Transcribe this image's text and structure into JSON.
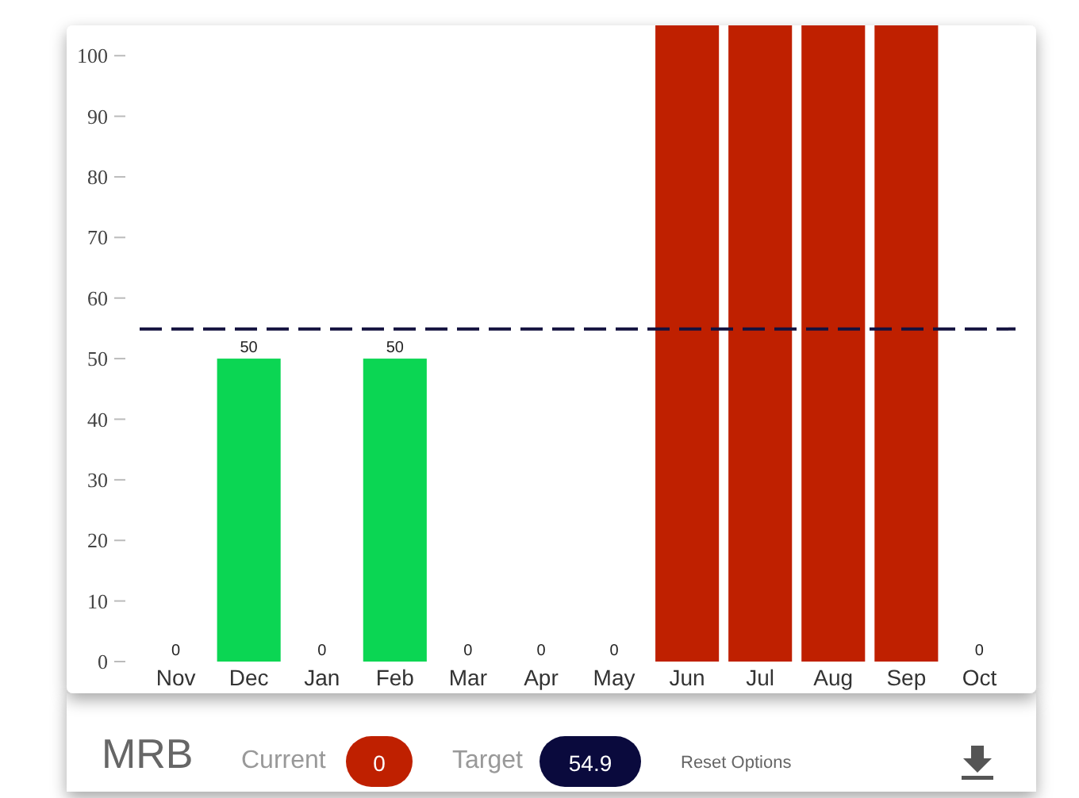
{
  "chart_data": {
    "type": "bar",
    "categories": [
      "Nov",
      "Dec",
      "Jan",
      "Feb",
      "Mar",
      "Apr",
      "May",
      "Jun",
      "Jul",
      "Aug",
      "Sep",
      "Oct"
    ],
    "values": [
      0,
      50,
      0,
      50,
      0,
      0,
      0,
      105,
      105,
      105,
      105,
      0
    ],
    "colors": [
      "#0bd653",
      "#0bd653",
      "#0bd653",
      "#0bd653",
      "#0bd653",
      "#0bd653",
      "#0bd653",
      "#bf2000",
      "#bf2000",
      "#bf2000",
      "#bf2000",
      "#0bd653"
    ],
    "value_labels": [
      "0",
      "50",
      "0",
      "50",
      "0",
      "0",
      "0",
      null,
      null,
      null,
      null,
      "0"
    ],
    "ylim": [
      0,
      105
    ],
    "yticks": [
      0,
      10,
      20,
      30,
      40,
      50,
      60,
      70,
      80,
      90,
      100
    ],
    "ref_lines": [
      {
        "axis": "y",
        "value": 54.9,
        "color": "#14123f",
        "line_style": "dashed"
      }
    ],
    "annotations": [
      "MRB",
      "Current",
      "0",
      "Target",
      "54.9",
      "Reset Options"
    ]
  }
}
